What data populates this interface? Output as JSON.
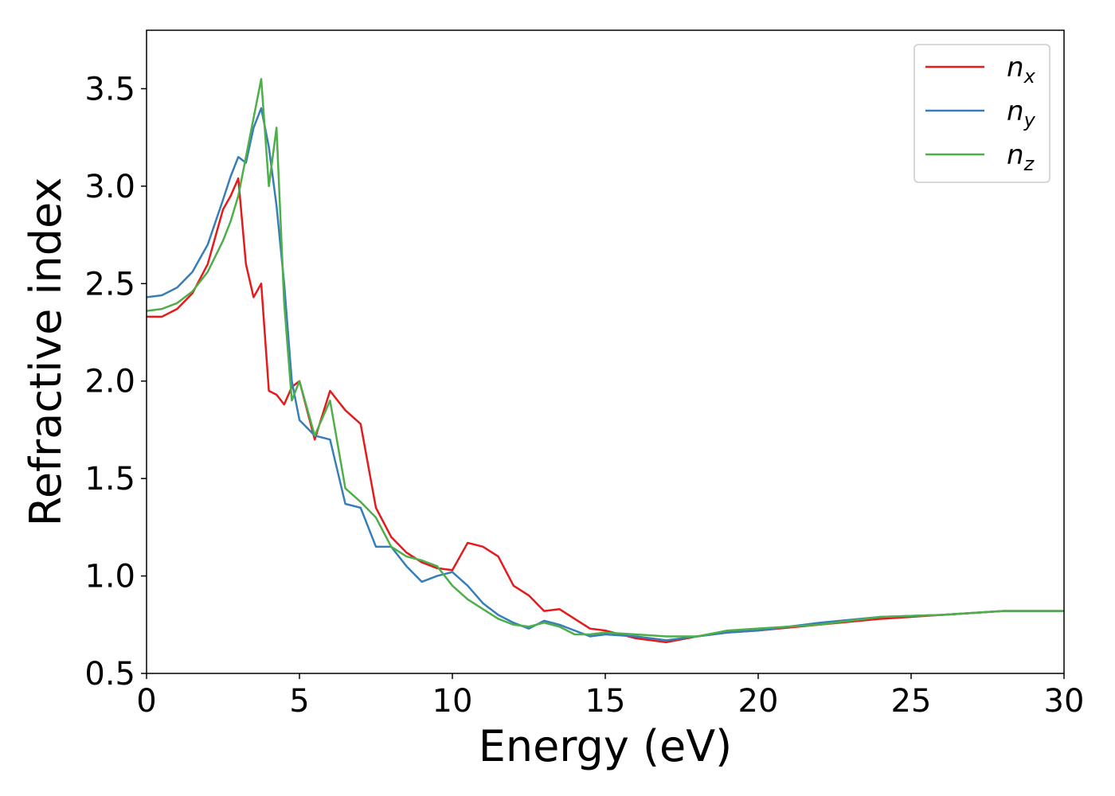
{
  "chart_data": {
    "type": "line",
    "xlabel": "Energy (eV)",
    "ylabel": "Refractive index",
    "x": [
      0,
      0.5,
      1,
      1.5,
      2,
      2.5,
      2.75,
      3,
      3.25,
      3.5,
      3.75,
      4,
      4.25,
      4.5,
      4.75,
      5,
      5.5,
      6,
      6.5,
      7,
      7.5,
      8,
      8.5,
      9,
      9.5,
      10,
      10.5,
      11,
      11.5,
      12,
      12.5,
      13,
      13.5,
      14,
      14.5,
      15,
      16,
      17,
      18,
      19,
      20,
      22,
      24,
      26,
      28,
      30
    ],
    "series": [
      {
        "name": "n",
        "subscript": "x",
        "color": "#e41a1c",
        "values": [
          2.33,
          2.33,
          2.37,
          2.45,
          2.6,
          2.88,
          2.95,
          3.04,
          2.6,
          2.43,
          2.5,
          1.95,
          1.93,
          1.88,
          1.97,
          2.0,
          1.7,
          1.95,
          1.85,
          1.78,
          1.35,
          1.2,
          1.12,
          1.07,
          1.04,
          1.03,
          1.17,
          1.15,
          1.1,
          0.95,
          0.9,
          0.82,
          0.83,
          0.78,
          0.73,
          0.72,
          0.68,
          0.66,
          0.69,
          0.71,
          0.72,
          0.75,
          0.78,
          0.8,
          0.82,
          0.82
        ]
      },
      {
        "name": "n",
        "subscript": "y",
        "color": "#377eb8",
        "values": [
          2.43,
          2.44,
          2.48,
          2.56,
          2.7,
          2.93,
          3.05,
          3.15,
          3.12,
          3.3,
          3.4,
          3.2,
          2.9,
          2.5,
          2.0,
          1.8,
          1.72,
          1.7,
          1.37,
          1.35,
          1.15,
          1.15,
          1.05,
          0.97,
          1.0,
          1.02,
          0.95,
          0.86,
          0.8,
          0.76,
          0.73,
          0.77,
          0.75,
          0.72,
          0.69,
          0.7,
          0.69,
          0.67,
          0.69,
          0.71,
          0.72,
          0.76,
          0.79,
          0.8,
          0.82,
          0.82
        ]
      },
      {
        "name": "n",
        "subscript": "z",
        "color": "#4daf4a",
        "values": [
          2.36,
          2.37,
          2.4,
          2.46,
          2.56,
          2.72,
          2.82,
          2.95,
          3.15,
          3.35,
          3.55,
          3.0,
          3.3,
          2.4,
          1.9,
          2.0,
          1.72,
          1.9,
          1.45,
          1.38,
          1.3,
          1.15,
          1.1,
          1.08,
          1.05,
          0.95,
          0.88,
          0.83,
          0.78,
          0.75,
          0.74,
          0.76,
          0.74,
          0.7,
          0.7,
          0.71,
          0.7,
          0.69,
          0.69,
          0.72,
          0.73,
          0.75,
          0.79,
          0.8,
          0.82,
          0.82
        ]
      }
    ],
    "xlim": [
      0,
      30
    ],
    "xticks": [
      0,
      5,
      10,
      15,
      20,
      25,
      30
    ],
    "ylim": [
      0.5,
      3.8
    ],
    "yticks": [
      0.5,
      {
        "value": 1,
        "label": "1.0"
      },
      1.5,
      {
        "value": 2,
        "label": "2.0"
      },
      2.5,
      {
        "value": 3,
        "label": "3.0"
      },
      3.5
    ],
    "grid": false,
    "legend": "upper right"
  }
}
